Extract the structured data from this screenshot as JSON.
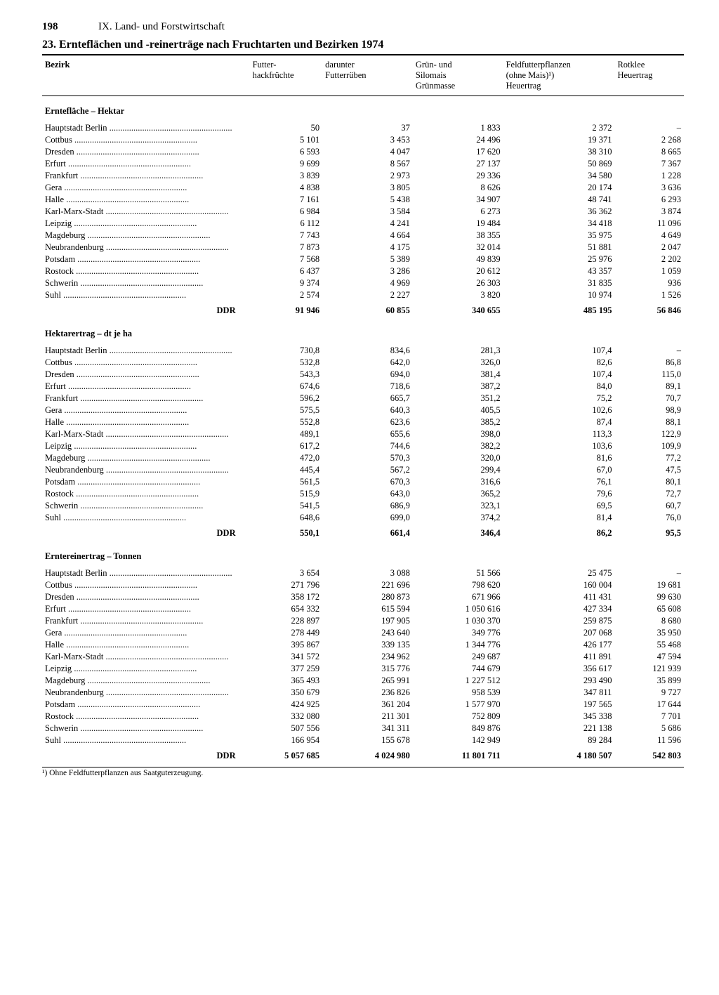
{
  "page_number": "198",
  "section_header": "IX. Land- und Forstwirtschaft",
  "title": "23. Ernteflächen und -reinerträge nach Fruchtarten und Bezirken 1974",
  "columns": {
    "c0": "Bezirk",
    "c1": "Futter-\nhackfrüchte",
    "c2": "darunter\nFutterrüben",
    "c3": "Grün- und\nSilomais\nGrünmasse",
    "c4": "Feldfutterpflanzen\n(ohne Mais)¹)\nHeuertrag",
    "c5": "Rotklee\nHeuertrag"
  },
  "regions": [
    "Hauptstadt Berlin",
    "Cottbus",
    "Dresden",
    "Erfurt",
    "Frankfurt",
    "Gera",
    "Halle",
    "Karl-Marx-Stadt",
    "Leipzig",
    "Magdeburg",
    "Neubrandenburg",
    "Potsdam",
    "Rostock",
    "Schwerin",
    "Suhl"
  ],
  "sections": [
    {
      "label": "Erntefläche – Hektar",
      "rows": [
        [
          "50",
          "37",
          "1 833",
          "2 372",
          "–"
        ],
        [
          "5 101",
          "3 453",
          "24 496",
          "19 371",
          "2 268"
        ],
        [
          "6 593",
          "4 047",
          "17 620",
          "38 310",
          "8 665"
        ],
        [
          "9 699",
          "8 567",
          "27 137",
          "50 869",
          "7 367"
        ],
        [
          "3 839",
          "2 973",
          "29 336",
          "34 580",
          "1 228"
        ],
        [
          "4 838",
          "3 805",
          "8 626",
          "20 174",
          "3 636"
        ],
        [
          "7 161",
          "5 438",
          "34 907",
          "48 741",
          "6 293"
        ],
        [
          "6 984",
          "3 584",
          "6 273",
          "36 362",
          "3 874"
        ],
        [
          "6 112",
          "4 241",
          "19 484",
          "34 418",
          "11 096"
        ],
        [
          "7 743",
          "4 664",
          "38 355",
          "35 975",
          "4 649"
        ],
        [
          "7 873",
          "4 175",
          "32 014",
          "51 881",
          "2 047"
        ],
        [
          "7 568",
          "5 389",
          "49 839",
          "25 976",
          "2 202"
        ],
        [
          "6 437",
          "3 286",
          "20 612",
          "43 357",
          "1 059"
        ],
        [
          "9 374",
          "4 969",
          "26 303",
          "31 835",
          "936"
        ],
        [
          "2 574",
          "2 227",
          "3 820",
          "10 974",
          "1 526"
        ]
      ],
      "total": [
        "91 946",
        "60 855",
        "340 655",
        "485 195",
        "56 846"
      ]
    },
    {
      "label": "Hektarertrag – dt je ha",
      "rows": [
        [
          "730,8",
          "834,6",
          "281,3",
          "107,4",
          "–"
        ],
        [
          "532,8",
          "642,0",
          "326,0",
          "82,6",
          "86,8"
        ],
        [
          "543,3",
          "694,0",
          "381,4",
          "107,4",
          "115,0"
        ],
        [
          "674,6",
          "718,6",
          "387,2",
          "84,0",
          "89,1"
        ],
        [
          "596,2",
          "665,7",
          "351,2",
          "75,2",
          "70,7"
        ],
        [
          "575,5",
          "640,3",
          "405,5",
          "102,6",
          "98,9"
        ],
        [
          "552,8",
          "623,6",
          "385,2",
          "87,4",
          "88,1"
        ],
        [
          "489,1",
          "655,6",
          "398,0",
          "113,3",
          "122,9"
        ],
        [
          "617,2",
          "744,6",
          "382,2",
          "103,6",
          "109,9"
        ],
        [
          "472,0",
          "570,3",
          "320,0",
          "81,6",
          "77,2"
        ],
        [
          "445,4",
          "567,2",
          "299,4",
          "67,0",
          "47,5"
        ],
        [
          "561,5",
          "670,3",
          "316,6",
          "76,1",
          "80,1"
        ],
        [
          "515,9",
          "643,0",
          "365,2",
          "79,6",
          "72,7"
        ],
        [
          "541,5",
          "686,9",
          "323,1",
          "69,5",
          "60,7"
        ],
        [
          "648,6",
          "699,0",
          "374,2",
          "81,4",
          "76,0"
        ]
      ],
      "total": [
        "550,1",
        "661,4",
        "346,4",
        "86,2",
        "95,5"
      ]
    },
    {
      "label": "Erntereinertrag – Tonnen",
      "rows": [
        [
          "3 654",
          "3 088",
          "51 566",
          "25 475",
          "–"
        ],
        [
          "271 796",
          "221 696",
          "798 620",
          "160 004",
          "19 681"
        ],
        [
          "358 172",
          "280 873",
          "671 966",
          "411 431",
          "99 630"
        ],
        [
          "654 332",
          "615 594",
          "1 050 616",
          "427 334",
          "65 608"
        ],
        [
          "228 897",
          "197 905",
          "1 030 370",
          "259 875",
          "8 680"
        ],
        [
          "278 449",
          "243 640",
          "349 776",
          "207 068",
          "35 950"
        ],
        [
          "395 867",
          "339 135",
          "1 344 776",
          "426 177",
          "55 468"
        ],
        [
          "341 572",
          "234 962",
          "249 687",
          "411 891",
          "47 594"
        ],
        [
          "377 259",
          "315 776",
          "744 679",
          "356 617",
          "121 939"
        ],
        [
          "365 493",
          "265 991",
          "1 227 512",
          "293 490",
          "35 899"
        ],
        [
          "350 679",
          "236 826",
          "958 539",
          "347 811",
          "9 727"
        ],
        [
          "424 925",
          "361 204",
          "1 577 970",
          "197 565",
          "17 644"
        ],
        [
          "332 080",
          "211 301",
          "752 809",
          "345 338",
          "7 701"
        ],
        [
          "507 556",
          "341 311",
          "849 876",
          "221 138",
          "5 686"
        ],
        [
          "166 954",
          "155 678",
          "142 949",
          "89 284",
          "11 596"
        ]
      ],
      "total": [
        "5 057 685",
        "4 024 980",
        "11 801 711",
        "4 180 507",
        "542 803"
      ]
    }
  ],
  "total_label": "DDR",
  "footnote": "¹) Ohne Feldfutterpflanzen aus Saatguterzeugung."
}
